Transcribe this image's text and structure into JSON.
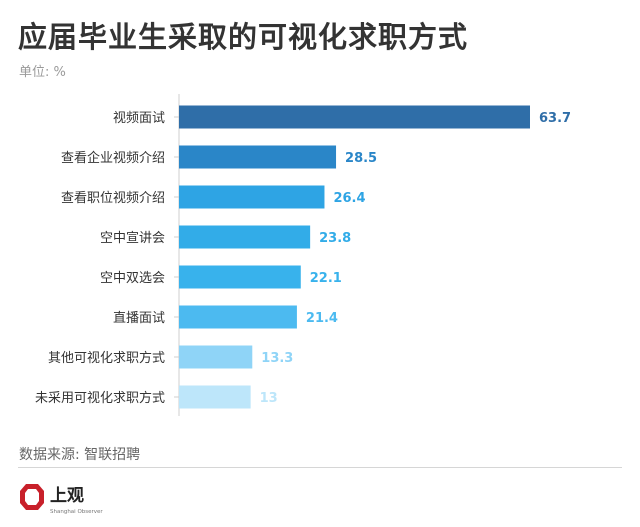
{
  "header": {
    "title": "应届毕业生采取的可视化求职方式",
    "unit": "单位: %"
  },
  "footer": {
    "source": "数据来源: 智联招聘",
    "logo_text": "上观",
    "logo_subtext": "Shanghai Observer"
  },
  "colors": {
    "bars": [
      "#2f6ea8",
      "#2a86c8",
      "#2ea4e4",
      "#32ace8",
      "#38b2ec",
      "#4cbaf0",
      "#8fd4f7",
      "#bde6fa"
    ],
    "logo_red": "#c8202a"
  },
  "chart_data": {
    "type": "bar",
    "orientation": "horizontal",
    "categories": [
      "视频面试",
      "查看企业视频介绍",
      "查看职位视频介绍",
      "空中宣讲会",
      "空中双选会",
      "直播面试",
      "其他可视化求职方式",
      "未采用可视化求职方式"
    ],
    "values": [
      63.7,
      28.5,
      26.4,
      23.8,
      22.1,
      21.4,
      13.3,
      13
    ],
    "value_labels": [
      "63.7",
      "28.5",
      "26.4",
      "23.8",
      "22.1",
      "21.4",
      "13.3",
      "13"
    ],
    "title": "应届毕业生采取的可视化求职方式",
    "unit": "%",
    "xlim": [
      0,
      63.7
    ],
    "grid": false,
    "legend": "none"
  }
}
